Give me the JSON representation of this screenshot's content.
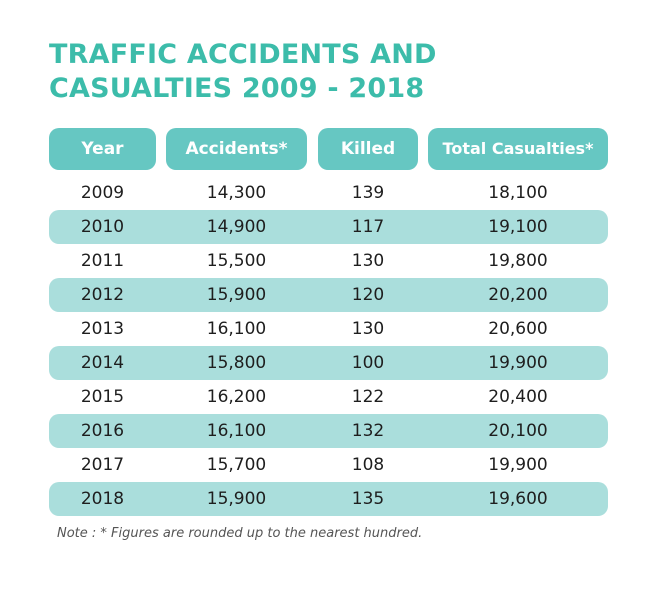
{
  "title": {
    "line1": "TRAFFIC ACCIDENTS AND",
    "line2": "CASUALTIES 2009 - 2018"
  },
  "table": {
    "headers": [
      "Year",
      "Accidents*",
      "Killed",
      "Total Casualties*"
    ],
    "rows": [
      [
        "2009",
        "14,300",
        "139",
        "18,100"
      ],
      [
        "2010",
        "14,900",
        "117",
        "19,100"
      ],
      [
        "2011",
        "15,500",
        "130",
        "19,800"
      ],
      [
        "2012",
        "15,900",
        "120",
        "20,200"
      ],
      [
        "2013",
        "16,100",
        "130",
        "20,600"
      ],
      [
        "2014",
        "15,800",
        "100",
        "19,900"
      ],
      [
        "2015",
        "16,200",
        "122",
        "20,400"
      ],
      [
        "2016",
        "16,100",
        "132",
        "20,100"
      ],
      [
        "2017",
        "15,700",
        "108",
        "19,900"
      ],
      [
        "2018",
        "15,900",
        "135",
        "19,600"
      ]
    ]
  },
  "note": "Note : * Figures are rounded up to the nearest hundred.",
  "colors": {
    "title": "#3cbcaa",
    "header_fill": "#66c7c2",
    "band_fill": "#aadedc",
    "text": "#1e1e1e"
  }
}
